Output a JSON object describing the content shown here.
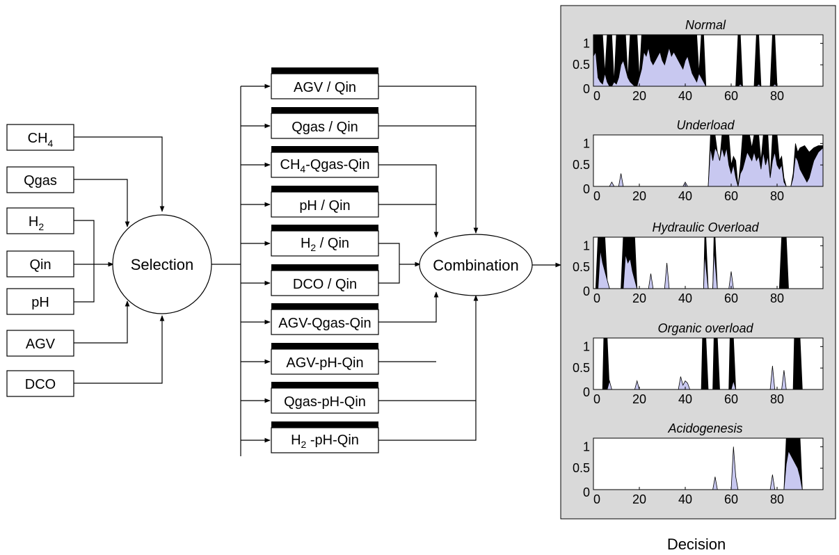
{
  "inputs": [
    {
      "label": "CH",
      "sub": "4"
    },
    {
      "label": "Qgas",
      "sub": ""
    },
    {
      "label": "H",
      "sub": "2"
    },
    {
      "label": "Qin",
      "sub": ""
    },
    {
      "label": "pH",
      "sub": ""
    },
    {
      "label": "AGV",
      "sub": ""
    },
    {
      "label": "DCO",
      "sub": ""
    }
  ],
  "selection_label": "Selection",
  "combination_label": "Combination",
  "models": [
    {
      "pre": "AGV / Qin",
      "sub": "",
      "post": ""
    },
    {
      "pre": "Qgas / Qin",
      "sub": "",
      "post": ""
    },
    {
      "pre": "CH",
      "sub": "4",
      "post": "-Qgas-Qin"
    },
    {
      "pre": "pH / Qin",
      "sub": "",
      "post": ""
    },
    {
      "pre": "H",
      "sub": "2",
      "post": " / Qin"
    },
    {
      "pre": "DCO / Qin",
      "sub": "",
      "post": ""
    },
    {
      "pre": "AGV-Qgas-Qin",
      "sub": "",
      "post": ""
    },
    {
      "pre": "AGV-pH-Qin",
      "sub": "",
      "post": ""
    },
    {
      "pre": "Qgas-pH-Qin",
      "sub": "",
      "post": ""
    },
    {
      "pre": "H",
      "sub": "2",
      "post": " -pH-Qin"
    }
  ],
  "decision_label": "Decision",
  "colors": {
    "panel_bg": "#d9d9d9",
    "fill_light": "#c8c8f0",
    "fill_dark": "#000000"
  },
  "chart_data": [
    {
      "type": "area",
      "title": "Normal",
      "xlim": [
        0,
        100
      ],
      "ylim": [
        0,
        1.2
      ],
      "xticks": [
        "0",
        "20",
        "40",
        "60",
        "80"
      ],
      "yticks": [
        "0",
        "0.5",
        "1"
      ],
      "high": [
        [
          0,
          1.2
        ],
        [
          1,
          1.2
        ],
        [
          4,
          1.2
        ],
        [
          5,
          0.3
        ],
        [
          6,
          1.2
        ],
        [
          8,
          1.2
        ],
        [
          9,
          0.1
        ],
        [
          10,
          1.2
        ],
        [
          14,
          1.2
        ],
        [
          15,
          0.2
        ],
        [
          16,
          1.2
        ],
        [
          19,
          1.2
        ],
        [
          20,
          0.2
        ],
        [
          21,
          1.2
        ],
        [
          45,
          1.2
        ],
        [
          46,
          0.3
        ],
        [
          47,
          1.2
        ],
        [
          48,
          1.2
        ],
        [
          49,
          0
        ],
        [
          62,
          0
        ],
        [
          63,
          1.2
        ],
        [
          64,
          1.2
        ],
        [
          65,
          0
        ],
        [
          70,
          0
        ],
        [
          71,
          1.2
        ],
        [
          72,
          1.2
        ],
        [
          73,
          0
        ],
        [
          77,
          0
        ],
        [
          78,
          1.2
        ],
        [
          79,
          1.2
        ],
        [
          80,
          0
        ],
        [
          100,
          0
        ]
      ],
      "low": [
        [
          0,
          0.7
        ],
        [
          1,
          0.8
        ],
        [
          2,
          0.2
        ],
        [
          3,
          0.1
        ],
        [
          4,
          0.05
        ],
        [
          5,
          0.3
        ],
        [
          6,
          0.1
        ],
        [
          7,
          0
        ],
        [
          8,
          0
        ],
        [
          9,
          0.1
        ],
        [
          10,
          0.05
        ],
        [
          11,
          0.2
        ],
        [
          12,
          0.5
        ],
        [
          13,
          0.6
        ],
        [
          14,
          0.4
        ],
        [
          15,
          0.2
        ],
        [
          16,
          0.1
        ],
        [
          17,
          0.05
        ],
        [
          18,
          0
        ],
        [
          19,
          0
        ],
        [
          20,
          0.2
        ],
        [
          21,
          0.4
        ],
        [
          22,
          0.8
        ],
        [
          23,
          0.7
        ],
        [
          24,
          0.9
        ],
        [
          25,
          0.6
        ],
        [
          26,
          0.5
        ],
        [
          27,
          0.6
        ],
        [
          28,
          0.7
        ],
        [
          29,
          0.8
        ],
        [
          30,
          0.6
        ],
        [
          31,
          0.5
        ],
        [
          32,
          0.7
        ],
        [
          33,
          0.9
        ],
        [
          34,
          0.7
        ],
        [
          35,
          0.8
        ],
        [
          36,
          0.7
        ],
        [
          37,
          0.6
        ],
        [
          38,
          0.5
        ],
        [
          39,
          0.4
        ],
        [
          40,
          0.6
        ],
        [
          41,
          0.7
        ],
        [
          42,
          0.5
        ],
        [
          43,
          0.3
        ],
        [
          44,
          0.2
        ],
        [
          45,
          0.1
        ],
        [
          46,
          0.3
        ],
        [
          47,
          0.2
        ],
        [
          48,
          0.1
        ],
        [
          49,
          0
        ],
        [
          63,
          0
        ],
        [
          64,
          0.05
        ],
        [
          65,
          0
        ],
        [
          71,
          0
        ],
        [
          72,
          0.05
        ],
        [
          73,
          0
        ],
        [
          78,
          0
        ],
        [
          79,
          0.05
        ],
        [
          80,
          0
        ],
        [
          100,
          0
        ]
      ]
    },
    {
      "type": "area",
      "title": "Underload",
      "xlim": [
        0,
        100
      ],
      "ylim": [
        0,
        1.2
      ],
      "xticks": [
        "0",
        "20",
        "40",
        "60",
        "80"
      ],
      "yticks": [
        "0",
        "0.5",
        "1"
      ],
      "high": [
        [
          0,
          0
        ],
        [
          50,
          0
        ],
        [
          51,
          1.2
        ],
        [
          53,
          1.2
        ],
        [
          54,
          0.8
        ],
        [
          55,
          0.6
        ],
        [
          56,
          1.2
        ],
        [
          59,
          1.2
        ],
        [
          60,
          0.5
        ],
        [
          61,
          0.7
        ],
        [
          62,
          0.6
        ],
        [
          63,
          0
        ],
        [
          64,
          0.5
        ],
        [
          65,
          1.2
        ],
        [
          68,
          1.2
        ],
        [
          69,
          0.9
        ],
        [
          70,
          1.2
        ],
        [
          72,
          1.2
        ],
        [
          73,
          0.6
        ],
        [
          74,
          1.2
        ],
        [
          76,
          1.2
        ],
        [
          77,
          0.2
        ],
        [
          78,
          1.2
        ],
        [
          80,
          1.2
        ],
        [
          81,
          0.6
        ],
        [
          82,
          0.7
        ],
        [
          83,
          0.2
        ],
        [
          84,
          0
        ],
        [
          86,
          0
        ],
        [
          87,
          0.3
        ],
        [
          88,
          1.0
        ],
        [
          89,
          0.8
        ],
        [
          90,
          0.9
        ],
        [
          92,
          0.95
        ],
        [
          94,
          0.8
        ],
        [
          96,
          0.9
        ],
        [
          98,
          0.95
        ],
        [
          100,
          0.95
        ]
      ],
      "low": [
        [
          0,
          0
        ],
        [
          7,
          0
        ],
        [
          8,
          0.1
        ],
        [
          9,
          0
        ],
        [
          11,
          0
        ],
        [
          12,
          0.3
        ],
        [
          13,
          0
        ],
        [
          39,
          0
        ],
        [
          40,
          0.1
        ],
        [
          41,
          0
        ],
        [
          50,
          0
        ],
        [
          51,
          0.9
        ],
        [
          52,
          0.6
        ],
        [
          53,
          0.9
        ],
        [
          54,
          0.8
        ],
        [
          55,
          0.6
        ],
        [
          56,
          0.9
        ],
        [
          57,
          0.7
        ],
        [
          58,
          0.9
        ],
        [
          59,
          0.5
        ],
        [
          60,
          0.3
        ],
        [
          61,
          0.5
        ],
        [
          62,
          0.2
        ],
        [
          63,
          0
        ],
        [
          64,
          0.3
        ],
        [
          65,
          0.4
        ],
        [
          66,
          0.6
        ],
        [
          67,
          0.8
        ],
        [
          68,
          0.7
        ],
        [
          69,
          0.6
        ],
        [
          70,
          0.8
        ],
        [
          71,
          0.6
        ],
        [
          72,
          0.7
        ],
        [
          73,
          0.4
        ],
        [
          74,
          0.8
        ],
        [
          75,
          0.5
        ],
        [
          76,
          0.7
        ],
        [
          77,
          0.2
        ],
        [
          78,
          0.6
        ],
        [
          79,
          0.8
        ],
        [
          80,
          0.5
        ],
        [
          81,
          0.4
        ],
        [
          82,
          0.5
        ],
        [
          83,
          0.1
        ],
        [
          84,
          0
        ],
        [
          86,
          0
        ],
        [
          87,
          0.2
        ],
        [
          88,
          0.7
        ],
        [
          89,
          0.6
        ],
        [
          90,
          0.4
        ],
        [
          91,
          0.3
        ],
        [
          92,
          0.2
        ],
        [
          93,
          0.1
        ],
        [
          94,
          0.2
        ],
        [
          95,
          0.4
        ],
        [
          96,
          0.6
        ],
        [
          97,
          0.7
        ],
        [
          98,
          0.8
        ],
        [
          100,
          0.9
        ]
      ]
    },
    {
      "type": "area",
      "title": "Hydraulic Overload",
      "xlim": [
        0,
        100
      ],
      "ylim": [
        0,
        1.2
      ],
      "xticks": [
        "0",
        "20",
        "40",
        "60",
        "80"
      ],
      "yticks": [
        "0",
        "0.5",
        "1"
      ],
      "high": [
        [
          0,
          0
        ],
        [
          1,
          0
        ],
        [
          2,
          1.2
        ],
        [
          5,
          1.2
        ],
        [
          6,
          0.2
        ],
        [
          7,
          0
        ],
        [
          12,
          0
        ],
        [
          13,
          1.2
        ],
        [
          18,
          1.2
        ],
        [
          19,
          0
        ],
        [
          48,
          0
        ],
        [
          48.5,
          1.2
        ],
        [
          49,
          1.2
        ],
        [
          50,
          0
        ],
        [
          52,
          0
        ],
        [
          52.5,
          1.2
        ],
        [
          53,
          1.2
        ],
        [
          54,
          0
        ],
        [
          81,
          0
        ],
        [
          82,
          1.2
        ],
        [
          84,
          1.2
        ],
        [
          85,
          0
        ],
        [
          100,
          0
        ]
      ],
      "low": [
        [
          0,
          0
        ],
        [
          2,
          0
        ],
        [
          3,
          0.9
        ],
        [
          4,
          0.6
        ],
        [
          5,
          0.4
        ],
        [
          6,
          0.2
        ],
        [
          7,
          0
        ],
        [
          13,
          0
        ],
        [
          14,
          0.8
        ],
        [
          15,
          0.6
        ],
        [
          16,
          0.7
        ],
        [
          17,
          0.4
        ],
        [
          18,
          0.2
        ],
        [
          19,
          0
        ],
        [
          24,
          0
        ],
        [
          25,
          0.35
        ],
        [
          26,
          0
        ],
        [
          31,
          0
        ],
        [
          32,
          0.6
        ],
        [
          33,
          0
        ],
        [
          48,
          0
        ],
        [
          48.5,
          0.8
        ],
        [
          50,
          0
        ],
        [
          52,
          0
        ],
        [
          52.5,
          0.9
        ],
        [
          54,
          0
        ],
        [
          59,
          0
        ],
        [
          60,
          0.4
        ],
        [
          61,
          0
        ],
        [
          100,
          0
        ]
      ]
    },
    {
      "type": "area",
      "title": "Organic overload",
      "xlim": [
        0,
        100
      ],
      "ylim": [
        0,
        1.2
      ],
      "xticks": [
        "0",
        "20",
        "40",
        "60",
        "80"
      ],
      "yticks": [
        "0",
        "0.5",
        "1"
      ],
      "high": [
        [
          0,
          0
        ],
        [
          4,
          0
        ],
        [
          4.5,
          1.2
        ],
        [
          6,
          1.2
        ],
        [
          7,
          0
        ],
        [
          47,
          0
        ],
        [
          47.5,
          1.2
        ],
        [
          49,
          1.2
        ],
        [
          50,
          0
        ],
        [
          52,
          0
        ],
        [
          52.5,
          1.2
        ],
        [
          54,
          1.2
        ],
        [
          55,
          0
        ],
        [
          59,
          0
        ],
        [
          59.5,
          1.2
        ],
        [
          61,
          1.2
        ],
        [
          62,
          0
        ],
        [
          87,
          0
        ],
        [
          87.5,
          1.2
        ],
        [
          90,
          1.2
        ],
        [
          91,
          0
        ],
        [
          100,
          0
        ]
      ],
      "low": [
        [
          0,
          0
        ],
        [
          6,
          0
        ],
        [
          7,
          0.2
        ],
        [
          8,
          0
        ],
        [
          18,
          0
        ],
        [
          19,
          0.2
        ],
        [
          20,
          0
        ],
        [
          37,
          0
        ],
        [
          38,
          0.3
        ],
        [
          39,
          0.1
        ],
        [
          40,
          0.2
        ],
        [
          41,
          0.15
        ],
        [
          42,
          0
        ],
        [
          60,
          0
        ],
        [
          61,
          0.2
        ],
        [
          62,
          0
        ],
        [
          77,
          0
        ],
        [
          78,
          0.55
        ],
        [
          79,
          0
        ],
        [
          82,
          0
        ],
        [
          83,
          0.45
        ],
        [
          84,
          0
        ],
        [
          100,
          0
        ]
      ]
    },
    {
      "type": "area",
      "title": "Acidogenesis",
      "xlim": [
        0,
        100
      ],
      "ylim": [
        0,
        1.2
      ],
      "xticks": [
        "0",
        "20",
        "40",
        "60",
        "80"
      ],
      "yticks": [
        "0",
        "0.5",
        "1"
      ],
      "high": [
        [
          0,
          0
        ],
        [
          83,
          0
        ],
        [
          84,
          1.2
        ],
        [
          90,
          1.2
        ],
        [
          91,
          0
        ],
        [
          100,
          0
        ]
      ],
      "low": [
        [
          0,
          0
        ],
        [
          52,
          0
        ],
        [
          53,
          0.3
        ],
        [
          54,
          0
        ],
        [
          60,
          0
        ],
        [
          61,
          1.0
        ],
        [
          62,
          0.3
        ],
        [
          63,
          0
        ],
        [
          77,
          0
        ],
        [
          78,
          0.35
        ],
        [
          79,
          0
        ],
        [
          83,
          0
        ],
        [
          84,
          0.6
        ],
        [
          85,
          0.9
        ],
        [
          86,
          0.8
        ],
        [
          87,
          0.7
        ],
        [
          88,
          0.6
        ],
        [
          89,
          0.5
        ],
        [
          90,
          0.3
        ],
        [
          91,
          0
        ],
        [
          100,
          0
        ]
      ]
    }
  ]
}
